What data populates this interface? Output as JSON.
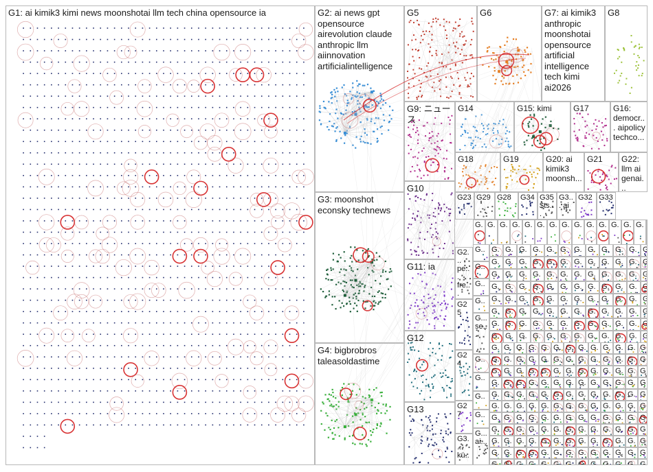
{
  "colors": {
    "border": "#b8b8b8",
    "edge": "#c9c9c9",
    "loop": "#d62728",
    "loop_faint": "#c46a6a"
  },
  "groups": [
    {
      "id": "G1",
      "label": "G1: ai kimik3 kimi news moonshotai llm tech china opensource ia",
      "color": "#1f2a6b",
      "layout": "grid"
    },
    {
      "id": "G2",
      "label": "G2: ai news gpt opensource airevolution claude anthropic llm aiinnovation artificialintelligence",
      "color": "#3a8fd6",
      "layout": "hub"
    },
    {
      "id": "G3",
      "label": "G3: moonshot econsky technews",
      "color": "#1e5e3a",
      "layout": "hub"
    },
    {
      "id": "G4",
      "label": "G4: bigbrobros taleasoldastime",
      "color": "#38b03a",
      "layout": "hub"
    },
    {
      "id": "G5",
      "label": "G5",
      "color": "#c0392b",
      "layout": "scatter"
    },
    {
      "id": "G6",
      "label": "G6",
      "color": "#e67e22",
      "layout": "hub"
    },
    {
      "id": "G7",
      "label": "G7: ai kimik3 anthropic moonshotai opensource artificial intelligence tech kimi ai2026",
      "color": "#555555",
      "layout": "none"
    },
    {
      "id": "G8",
      "label": "G8",
      "color": "#9cc23a",
      "layout": "ring"
    },
    {
      "id": "G9",
      "label": "G9: ニュース",
      "color": "#b0268a",
      "layout": "scatter"
    },
    {
      "id": "G10",
      "label": "G10",
      "color": "#6a2a8a",
      "layout": "scatter"
    },
    {
      "id": "G11",
      "label": "G11: ia",
      "color": "#7a32c8",
      "layout": "scatter"
    },
    {
      "id": "G12",
      "label": "G12",
      "color": "#1b6a7a",
      "layout": "scatter"
    },
    {
      "id": "G13",
      "label": "G13",
      "color": "#1f2a6b",
      "layout": "scatter"
    },
    {
      "id": "G14",
      "label": "G14",
      "color": "#3a8fd6",
      "layout": "scatter"
    },
    {
      "id": "G15",
      "label": "G15: kimi",
      "color": "#1e5e3a",
      "layout": "hub"
    },
    {
      "id": "G16",
      "label": "G16: democr... aipolicy techco...",
      "color": "#555555",
      "layout": "none"
    },
    {
      "id": "G17",
      "label": "G17",
      "color": "#b0268a",
      "layout": "scatter"
    },
    {
      "id": "G18",
      "label": "G18",
      "color": "#e67e22",
      "layout": "scatter"
    },
    {
      "id": "G19",
      "label": "G19",
      "color": "#d4a017",
      "layout": "scatter"
    },
    {
      "id": "G20",
      "label": "G20: ai kimik3 moonsh...",
      "color": "#555555",
      "layout": "none"
    },
    {
      "id": "G21",
      "label": "G21",
      "color": "#b0268a",
      "layout": "scatter"
    },
    {
      "id": "G22",
      "label": "G22: llm ai genai...",
      "color": "#555555",
      "layout": "none"
    },
    {
      "id": "G23",
      "label": "G23",
      "color": "#1f2a6b",
      "layout": "scatter"
    },
    {
      "id": "G29",
      "label": "G29",
      "color": "#555555",
      "layout": "scatter"
    },
    {
      "id": "G28",
      "label": "G28",
      "color": "#38b03a",
      "layout": "scatter"
    },
    {
      "id": "G34",
      "label": "G34",
      "color": "#1f2a6b",
      "layout": "scatter"
    },
    {
      "id": "G35",
      "label": "G35 $ts...",
      "color": "#555555",
      "layout": "scatter"
    },
    {
      "id": "G3x",
      "label": "G3... ai",
      "color": "#555555",
      "layout": "scatter"
    },
    {
      "id": "G32",
      "label": "G32",
      "color": "#7a32c8",
      "layout": "scatter"
    },
    {
      "id": "G33",
      "label": "G33",
      "color": "#1f2a6b",
      "layout": "scatter"
    },
    {
      "id": "G2x",
      "label": "G2... pe... fre...",
      "color": "#555555",
      "layout": "scatter"
    },
    {
      "id": "G25",
      "label": "G25",
      "color": "#1f2a6b",
      "layout": "scatter"
    },
    {
      "id": "G24",
      "label": "G24",
      "color": "#1b6a7a",
      "layout": "scatter"
    },
    {
      "id": "G27",
      "label": "G27",
      "color": "#7a32c8",
      "layout": "scatter"
    },
    {
      "id": "G3y",
      "label": "G3... kü...",
      "color": "#555555",
      "layout": "scatter"
    },
    {
      "id": "Gs1",
      "label": "G... se...",
      "color": "#555555",
      "layout": "scatter"
    },
    {
      "id": "Gs2",
      "label": "G... ai...",
      "color": "#555555",
      "layout": "scatter"
    }
  ],
  "tiny_label": "G..",
  "tiny_label_alt": "G.",
  "tiny_label_ai": "ai"
}
